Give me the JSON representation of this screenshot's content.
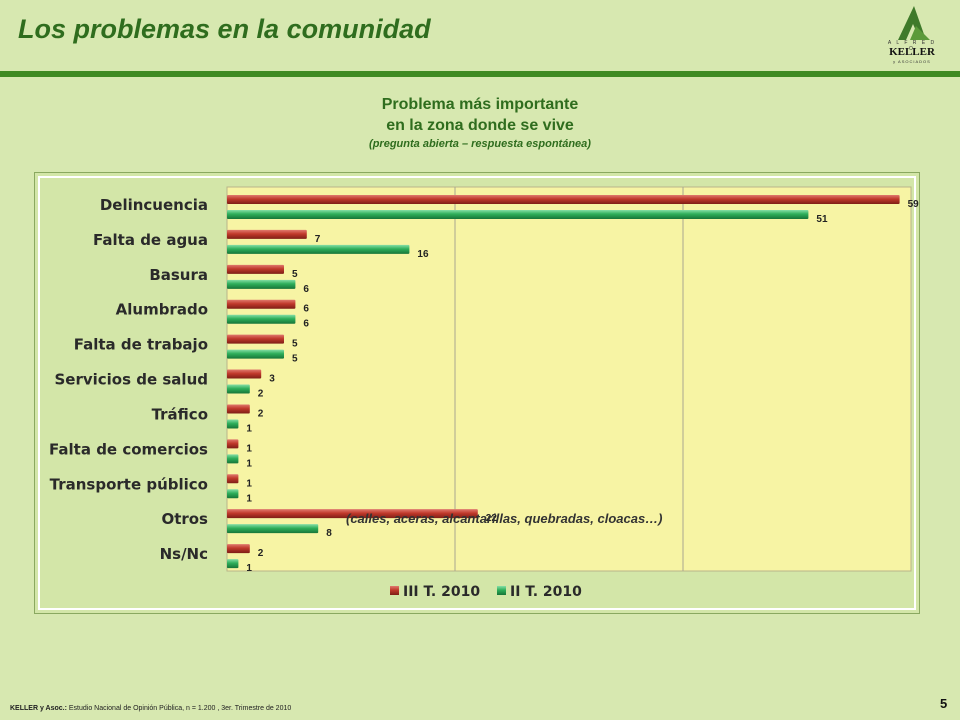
{
  "header": {
    "title": "Los problemas en la comunidad",
    "logo": {
      "top": "A L F R E D O",
      "name": "KELLER",
      "sub": "y ASOCIADOS"
    }
  },
  "chart_title": {
    "line1": "Problema más importante",
    "line2": "en la zona donde se vive",
    "line3": "(pregunta abierta – respuesta espontánea)"
  },
  "chart_data": {
    "type": "bar",
    "orientation": "horizontal",
    "categories": [
      "Delincuencia",
      "Falta de agua",
      "Basura",
      "Alumbrado",
      "Falta de trabajo",
      "Servicios de salud",
      "Tráfico",
      "Falta de comercios",
      "Transporte público",
      "Otros",
      "Ns/Nc"
    ],
    "series": [
      {
        "name": "III T. 2010",
        "color": "#c0392b",
        "values": [
          59,
          7,
          5,
          6,
          5,
          3,
          2,
          1,
          1,
          22,
          2
        ]
      },
      {
        "name": "II T. 2010",
        "color": "#2eae5a",
        "values": [
          51,
          16,
          6,
          6,
          5,
          2,
          1,
          1,
          1,
          8,
          1
        ]
      }
    ],
    "xlim": [
      0,
      60
    ],
    "grid": true,
    "legend": "bottom",
    "annotation": "(calles, aceras, alcantarillas, quebradas, cloacas…)"
  },
  "footer": {
    "source_bold": "KELLER y Asoc.:",
    "source": " Estudio Nacional de Opinión Pública, n = 1.200 , 3er. Trimestre de 2010",
    "page": "5"
  }
}
